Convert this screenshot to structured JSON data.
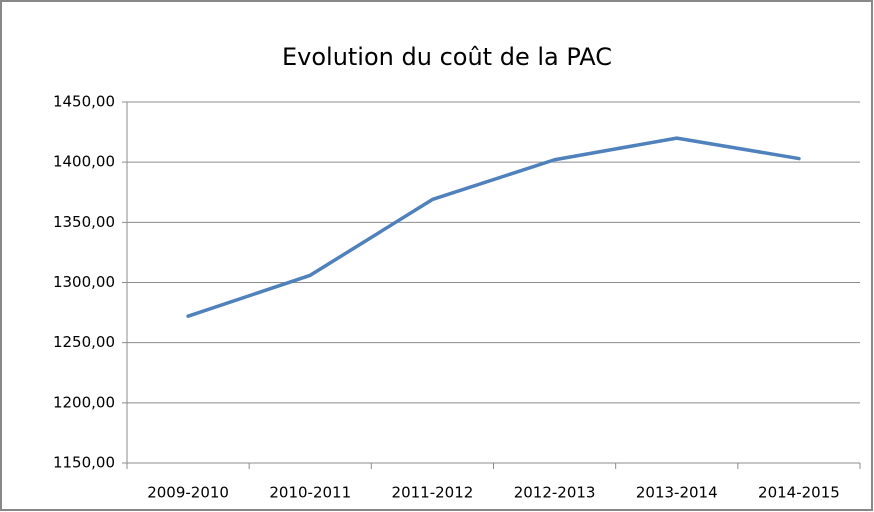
{
  "chart_data": {
    "type": "line",
    "title": "Evolution du coût de la PAC",
    "categories": [
      "2009-2010",
      "2010-2011",
      "2011-2012",
      "2012-2013",
      "2013-2014",
      "2014-2015"
    ],
    "series": [
      {
        "name": "Coût",
        "color": "#4f81bd",
        "values": [
          1272,
          1306,
          1369,
          1402,
          1420,
          1403
        ]
      }
    ],
    "ylim": [
      1150,
      1450
    ],
    "yticks": [
      {
        "value": 1150,
        "label": "1150,00"
      },
      {
        "value": 1200,
        "label": "1200,00"
      },
      {
        "value": 1250,
        "label": "1250,00"
      },
      {
        "value": 1300,
        "label": "1300,00"
      },
      {
        "value": 1350,
        "label": "1350,00"
      },
      {
        "value": 1400,
        "label": "1400,00"
      },
      {
        "value": 1450,
        "label": "1450,00"
      }
    ],
    "grid": true
  }
}
